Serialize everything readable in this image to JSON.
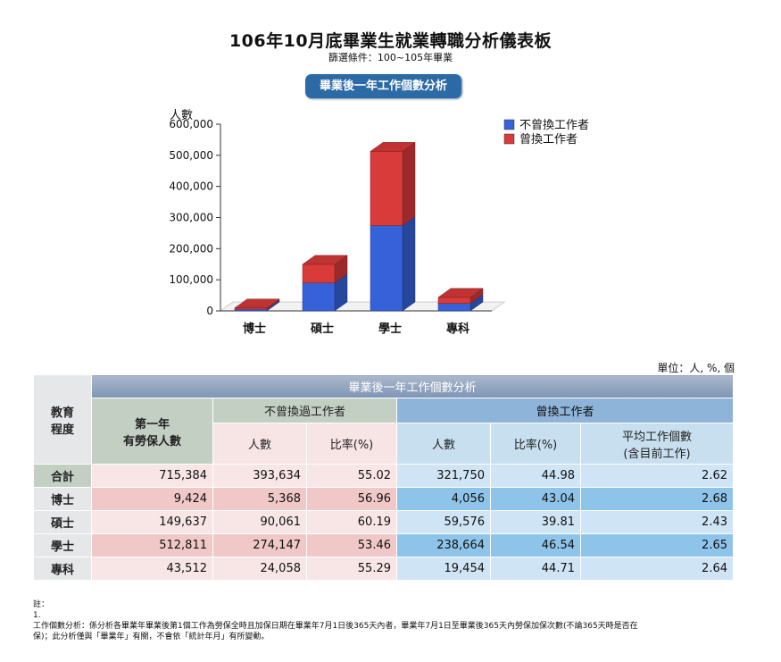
{
  "header": {
    "title": "106年10月底畢業生就業轉職分析儀表板",
    "filter": "篩選條件：100~105年畢業",
    "section_pill": "畢業後一年工作個數分析"
  },
  "chart_data": {
    "type": "bar",
    "stacked": true,
    "three_d": true,
    "ylabel": "人數",
    "ylim": [
      0,
      600000
    ],
    "yticks": [
      "0",
      "100,000",
      "200,000",
      "300,000",
      "400,000",
      "500,000",
      "600,000"
    ],
    "categories": [
      "博士",
      "碩士",
      "學士",
      "專科"
    ],
    "series": [
      {
        "name": "不曾換工作者",
        "color": "#3562d8",
        "values": [
          5368,
          90061,
          274147,
          24058
        ]
      },
      {
        "name": "曾換工作者",
        "color": "#d93a3a",
        "values": [
          4056,
          59576,
          238664,
          19454
        ]
      }
    ],
    "legend": "top-right"
  },
  "table": {
    "unit_note": "單位：人, %, 個",
    "header_top": "畢業後一年工作個數分析",
    "col_edu": [
      "教育",
      "程度"
    ],
    "col_first": [
      "第一年",
      "有勞保人數"
    ],
    "group_no_change": "不曾換過工作者",
    "group_change": "曾換工作者",
    "sub_count": "人數",
    "sub_rate": "比率(%)",
    "sub_avg": [
      "平均工作個數",
      "(含目前工作)"
    ],
    "rows": [
      {
        "label": "合計",
        "first": "715,384",
        "nc_count": "393,634",
        "nc_rate": "55.02",
        "c_count": "321,750",
        "c_rate": "44.98",
        "avg": "2.62"
      },
      {
        "label": "博士",
        "first": "9,424",
        "nc_count": "5,368",
        "nc_rate": "56.96",
        "c_count": "4,056",
        "c_rate": "43.04",
        "avg": "2.68"
      },
      {
        "label": "碩士",
        "first": "149,637",
        "nc_count": "90,061",
        "nc_rate": "60.19",
        "c_count": "59,576",
        "c_rate": "39.81",
        "avg": "2.43"
      },
      {
        "label": "學士",
        "first": "512,811",
        "nc_count": "274,147",
        "nc_rate": "53.46",
        "c_count": "238,664",
        "c_rate": "46.54",
        "avg": "2.65"
      },
      {
        "label": "專科",
        "first": "43,512",
        "nc_count": "24,058",
        "nc_rate": "55.29",
        "c_count": "19,454",
        "c_rate": "44.71",
        "avg": "2.64"
      }
    ]
  },
  "notes": {
    "label": "註：",
    "index": "1.",
    "line1": "工作個數分析：係分析各畢業年畢業後第1個工作為勞保全時且加保日期在畢業年7月1日後365天內者，畢業年7月1日至畢業後365天內勞保加保次數(不論365天時是否在",
    "line2": "保)；此分析僅與「畢業年」有關，不會依「統計年月」有所變動。"
  }
}
